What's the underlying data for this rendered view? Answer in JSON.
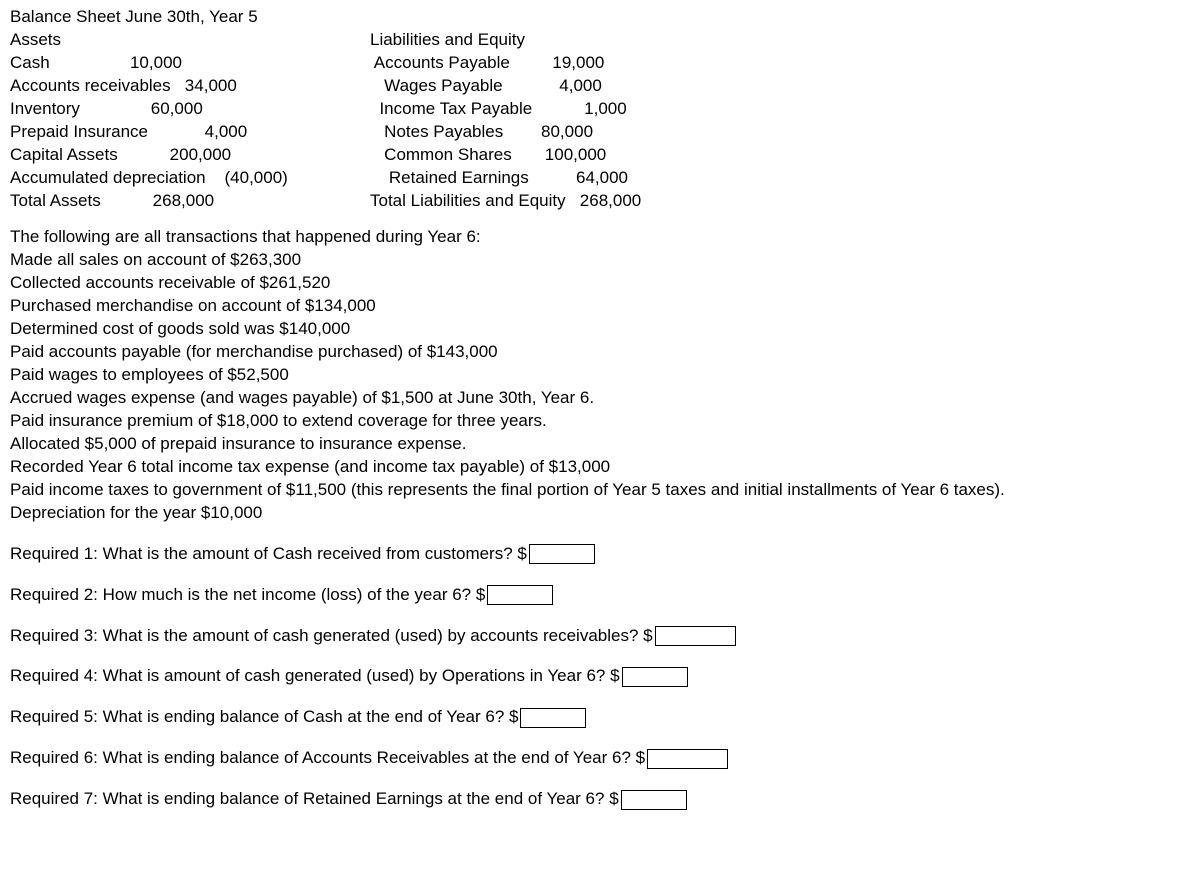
{
  "title": "Balance Sheet June 30th, Year 5",
  "assets": {
    "header": "Assets",
    "rows": [
      "Cash                 10,000",
      "Accounts receivables   34,000",
      "Inventory               60,000",
      "Prepaid Insurance            4,000",
      "Capital Assets           200,000",
      "Accumulated depreciation    (40,000)",
      "Total Assets           268,000"
    ]
  },
  "liab": {
    "header": "Liabilities and Equity",
    "rows": [
      " Accounts Payable         19,000",
      "   Wages Payable            4,000",
      "  Income Tax Payable           1,000",
      "   Notes Payables        80,000",
      "   Common Shares       100,000",
      "    Retained Earnings          64,000",
      "Total Liabilities and Equity   268,000"
    ]
  },
  "trans_header": "The following are all transactions that happened during Year 6:",
  "trans": [
    "Made all sales on account of $263,300",
    "Collected accounts receivable of $261,520",
    "Purchased merchandise on account of $134,000",
    "Determined cost of goods sold was $140,000",
    "Paid accounts payable (for merchandise purchased) of $143,000",
    "Paid wages to employees of $52,500",
    "Accrued wages expense (and wages payable) of $1,500 at June 30th, Year 6.",
    "Paid insurance premium of $18,000 to extend coverage for three years.",
    "Allocated $5,000 of prepaid insurance to insurance expense.",
    "Recorded Year 6 total income tax expense (and income tax payable) of $13,000",
    "Paid income taxes to government of $11,500 (this represents the final portion of Year 5 taxes and initial installments of Year 6 taxes).",
    "Depreciation for the year $10,000"
  ],
  "questions": [
    "Required 1: What is the amount of Cash received from customers? $",
    "Required 2: How much is the net income (loss) of the year 6? $",
    "Required 3: What is the amount of cash generated (used) by accounts receivables? $",
    "Required 4: What is amount of cash generated (used) by Operations in Year 6? $",
    "Required 5: What is ending balance of Cash at the end of Year 6? $",
    "Required 6: What is ending balance of Accounts Receivables at the end of Year 6? $",
    "Required 7: What is ending balance of Retained Earnings at the end of Year 6? $"
  ]
}
